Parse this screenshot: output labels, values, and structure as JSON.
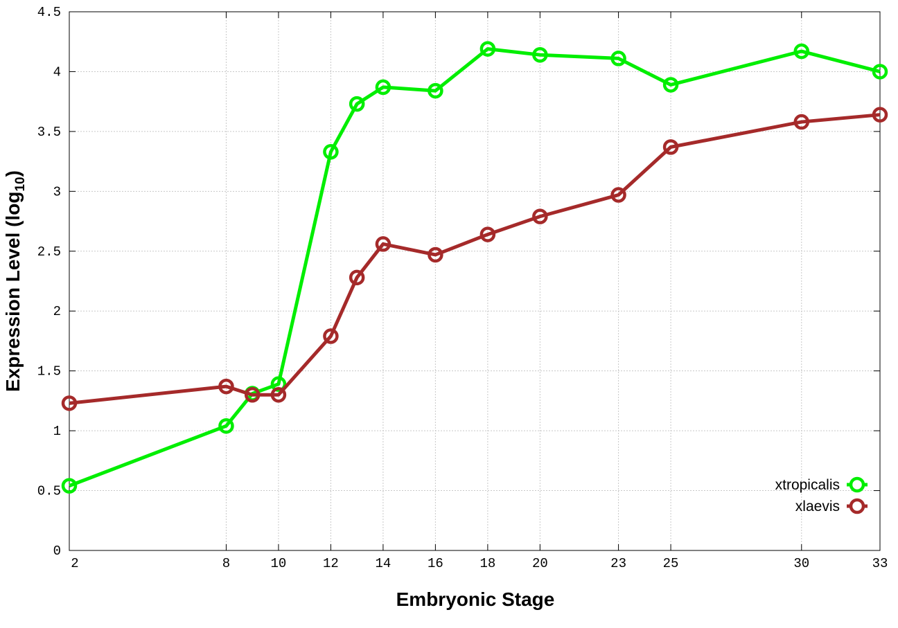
{
  "chart_data": {
    "type": "line",
    "title": "",
    "xlabel": "Embryonic Stage",
    "ylabel_parts": [
      "Expression Level (log",
      "10",
      ")"
    ],
    "x": [
      2,
      8,
      9,
      10,
      12,
      13,
      14,
      16,
      18,
      20,
      23,
      25,
      30,
      33
    ],
    "xticks": [
      2,
      8,
      10,
      12,
      14,
      16,
      18,
      20,
      23,
      25,
      30,
      33
    ],
    "yticks": [
      "0",
      "0.5",
      "1",
      "1.5",
      "2",
      "2.5",
      "3",
      "3.5",
      "4",
      "4.5"
    ],
    "xlim": [
      2,
      33
    ],
    "ylim": [
      0,
      4.5
    ],
    "grid": true,
    "legend_position": "bottom-right",
    "series": [
      {
        "name": "xtropicalis",
        "color": "#00ee00",
        "values": [
          0.54,
          1.04,
          1.31,
          1.39,
          3.33,
          3.73,
          3.87,
          3.84,
          4.19,
          4.14,
          4.11,
          3.89,
          4.17,
          4.0
        ]
      },
      {
        "name": "xlaevis",
        "color": "#a52a2a",
        "values": [
          1.23,
          1.37,
          1.3,
          1.3,
          1.79,
          2.28,
          2.56,
          2.47,
          2.64,
          2.79,
          2.97,
          3.37,
          3.58,
          3.64
        ]
      }
    ]
  }
}
